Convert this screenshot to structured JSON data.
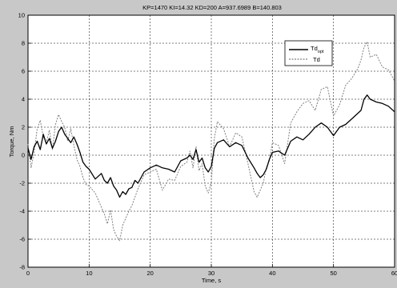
{
  "chart_data": {
    "type": "line",
    "title": "KP=1470 KI=14.32 KD=200 A=937.6989 B=140.803",
    "xlabel": "Time, s",
    "ylabel": "Torque, Nm",
    "xlim": [
      0,
      60
    ],
    "ylim": [
      -8,
      10
    ],
    "xticks": [
      0,
      10,
      20,
      30,
      40,
      50,
      60
    ],
    "yticks": [
      -8,
      -6,
      -4,
      -2,
      0,
      2,
      4,
      6,
      8,
      10
    ],
    "grid": true,
    "legend_position": "top-right",
    "series": [
      {
        "name": "Td_opt",
        "legend_main": "Td",
        "legend_sub": "opt",
        "color": "#000000",
        "style": "solid",
        "x": [
          0,
          0.5,
          1,
          1.5,
          2,
          2.5,
          3,
          3.5,
          4,
          4.5,
          5,
          5.5,
          6,
          6.5,
          7,
          7.5,
          8,
          8.5,
          9,
          9.5,
          10,
          11,
          12,
          12.5,
          13,
          13.5,
          14,
          14.5,
          15,
          15.5,
          16,
          16.5,
          17,
          17.5,
          18,
          19,
          20,
          21,
          22,
          23,
          24,
          25,
          26,
          26.5,
          27,
          27.5,
          28,
          28.5,
          29,
          29.5,
          30,
          30.5,
          31,
          32,
          33,
          34,
          35,
          36,
          37,
          37.5,
          38,
          38.5,
          39,
          39.5,
          40,
          41,
          42,
          43,
          44,
          45,
          46,
          47,
          48,
          49,
          50,
          51,
          52,
          53,
          54,
          54.5,
          55,
          55.5,
          56,
          57,
          58,
          59,
          60
        ],
        "y": [
          0.5,
          -0.3,
          0.6,
          1.0,
          0.4,
          1.5,
          0.8,
          1.2,
          0.5,
          1.0,
          1.7,
          2.0,
          1.5,
          1.2,
          0.9,
          1.3,
          0.8,
          0.2,
          -0.5,
          -0.8,
          -1.0,
          -1.7,
          -1.3,
          -1.8,
          -2.0,
          -1.6,
          -2.2,
          -2.5,
          -3.0,
          -2.6,
          -2.8,
          -2.4,
          -2.3,
          -1.8,
          -2.0,
          -1.2,
          -0.9,
          -0.7,
          -0.9,
          -1.0,
          -1.2,
          -0.4,
          -0.2,
          0.0,
          -0.3,
          0.4,
          -0.5,
          -0.2,
          -0.9,
          -1.2,
          -0.8,
          0.5,
          0.9,
          1.1,
          0.6,
          0.9,
          0.7,
          -0.2,
          -0.9,
          -1.3,
          -1.6,
          -1.4,
          -1.0,
          -0.3,
          0.2,
          0.3,
          0.0,
          1.0,
          1.3,
          1.1,
          1.5,
          2.0,
          2.3,
          2.0,
          1.4,
          2.0,
          2.2,
          2.6,
          3.0,
          3.2,
          4.0,
          4.3,
          4.0,
          3.8,
          3.7,
          3.5,
          3.1
        ]
      },
      {
        "name": "Td",
        "color": "#808080",
        "style": "dashed",
        "x": [
          0,
          0.5,
          1,
          1.5,
          2,
          2.5,
          3,
          3.5,
          4,
          4.5,
          5,
          5.5,
          6,
          6.5,
          7,
          7.5,
          8,
          8.5,
          9,
          9.5,
          10,
          11,
          12,
          12.5,
          13,
          13.5,
          14,
          14.5,
          15,
          15.5,
          16,
          16.5,
          17,
          17.5,
          18,
          19,
          20,
          21,
          22,
          23,
          24,
          25,
          26,
          26.5,
          27,
          27.5,
          28,
          28.5,
          29,
          29.5,
          30,
          30.5,
          31,
          32,
          33,
          34,
          35,
          36,
          37,
          37.5,
          38,
          38.5,
          39,
          39.5,
          40,
          41,
          42,
          43,
          44,
          45,
          46,
          47,
          48,
          49,
          50,
          51,
          52,
          53,
          54,
          54.5,
          55,
          55.5,
          56,
          57,
          58,
          59,
          60
        ],
        "y": [
          0.8,
          -0.9,
          0.2,
          1.9,
          2.5,
          1.3,
          0.9,
          1.8,
          0.4,
          2.2,
          2.9,
          2.4,
          2.0,
          1.0,
          1.9,
          0.7,
          -0.3,
          -0.8,
          -1.6,
          -2.1,
          -2.2,
          -2.7,
          -3.7,
          -4.2,
          -4.9,
          -3.9,
          -5.3,
          -5.8,
          -6.1,
          -5.0,
          -4.5,
          -4.0,
          -3.6,
          -3.0,
          -2.4,
          -1.4,
          -1.2,
          -1.0,
          -2.5,
          -1.7,
          -1.8,
          -0.8,
          -0.5,
          0.3,
          -0.9,
          0.6,
          -1.1,
          -0.6,
          -2.2,
          -2.7,
          -1.9,
          1.2,
          2.4,
          1.9,
          0.6,
          1.6,
          1.3,
          -0.6,
          -2.6,
          -3.0,
          -2.5,
          -2.0,
          -0.9,
          -0.4,
          0.9,
          0.7,
          -0.6,
          2.3,
          3.1,
          3.7,
          3.9,
          3.2,
          4.7,
          4.9,
          2.8,
          3.6,
          5.0,
          5.5,
          6.2,
          6.8,
          7.7,
          8.1,
          7.0,
          7.2,
          6.3,
          6.1,
          5.3
        ]
      }
    ]
  }
}
